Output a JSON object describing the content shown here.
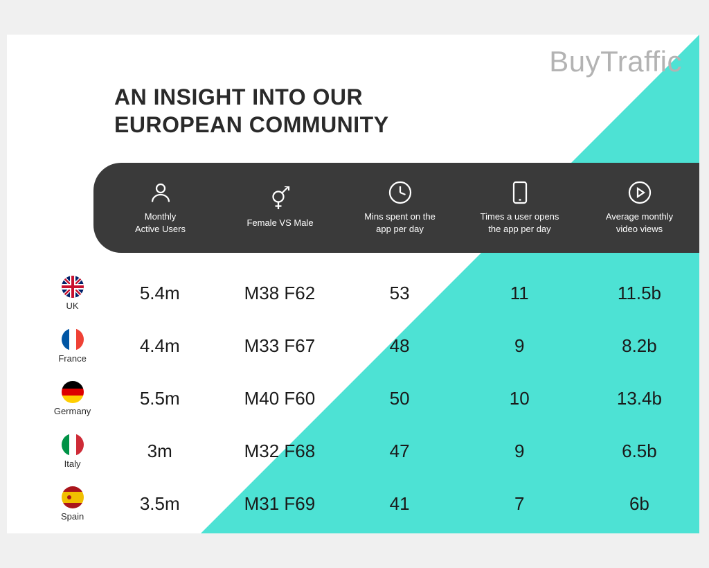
{
  "watermark": "BuyTraffic",
  "title": "AN INSIGHT INTO OUR\nEUROPEAN COMMUNITY",
  "colors": {
    "background": "#ffffff",
    "triangle": "#4de2d4",
    "header_bar": "#3a3a3a",
    "header_text": "#ffffff",
    "data_text": "#1a1a1a",
    "title_text": "#2a2a2a",
    "watermark_text": "#b3b3b3"
  },
  "typography": {
    "title_fontsize": 32,
    "watermark_fontsize": 42,
    "header_label_fontsize": 13,
    "data_fontsize": 26,
    "country_fontsize": 13
  },
  "columns": [
    {
      "icon": "user",
      "label": "Monthly\nActive Users"
    },
    {
      "icon": "gender",
      "label": "Female VS Male"
    },
    {
      "icon": "clock",
      "label": "Mins spent on the\napp per day"
    },
    {
      "icon": "phone",
      "label": "Times a user opens\nthe app per  day"
    },
    {
      "icon": "play",
      "label": "Average monthly\nvideo views"
    }
  ],
  "rows": [
    {
      "country": "UK",
      "flag": "uk",
      "values": [
        "5.4m",
        "M38 F62",
        "53",
        "11",
        "11.5b"
      ]
    },
    {
      "country": "France",
      "flag": "france",
      "values": [
        "4.4m",
        "M33 F67",
        "48",
        "9",
        "8.2b"
      ]
    },
    {
      "country": "Germany",
      "flag": "germany",
      "values": [
        "5.5m",
        "M40 F60",
        "50",
        "10",
        "13.4b"
      ]
    },
    {
      "country": "Italy",
      "flag": "italy",
      "values": [
        "3m",
        "M32 F68",
        "47",
        "9",
        "6.5b"
      ]
    },
    {
      "country": "Spain",
      "flag": "spain",
      "values": [
        "3.5m",
        "M31 F69",
        "41",
        "7",
        "6b"
      ]
    }
  ]
}
